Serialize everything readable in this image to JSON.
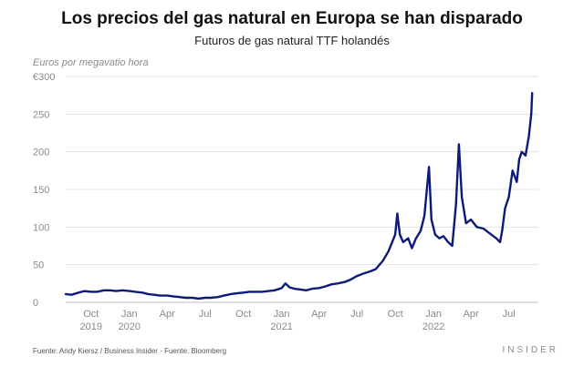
{
  "chart_data": {
    "type": "line",
    "title": "Los precios del gas natural en Europa se han disparado",
    "subtitle": "Futuros de gas natural TTF holandés",
    "ylabel": "Euros por megavatio hora",
    "source": "Fuente: Andy Kiersz / Business Insider · Fuente: Bloomberg",
    "brand": "INSIDER",
    "ylim": [
      0,
      300
    ],
    "xlim": [
      "2019-08-01",
      "2022-09-10"
    ],
    "grid": "horizontal",
    "y_ticks": [
      {
        "value": 0,
        "label": "0"
      },
      {
        "value": 50,
        "label": "50"
      },
      {
        "value": 100,
        "label": "100"
      },
      {
        "value": 150,
        "label": "150"
      },
      {
        "value": 200,
        "label": "200"
      },
      {
        "value": 250,
        "label": "250"
      },
      {
        "value": 300,
        "label": "€300"
      }
    ],
    "x_ticks": [
      {
        "date": "2019-10-01",
        "label": "Oct",
        "year": "2019"
      },
      {
        "date": "2020-01-01",
        "label": "Jan",
        "year": "2020"
      },
      {
        "date": "2020-04-01",
        "label": "Apr",
        "year": ""
      },
      {
        "date": "2020-07-01",
        "label": "Jul",
        "year": ""
      },
      {
        "date": "2020-10-01",
        "label": "Oct",
        "year": ""
      },
      {
        "date": "2021-01-01",
        "label": "Jan",
        "year": "2021"
      },
      {
        "date": "2021-04-01",
        "label": "Apr",
        "year": ""
      },
      {
        "date": "2021-07-01",
        "label": "Jul",
        "year": ""
      },
      {
        "date": "2021-10-01",
        "label": "Oct",
        "year": ""
      },
      {
        "date": "2022-01-01",
        "label": "Jan",
        "year": "2022"
      },
      {
        "date": "2022-04-01",
        "label": "Apr",
        "year": ""
      },
      {
        "date": "2022-07-01",
        "label": "Jul",
        "year": ""
      }
    ],
    "series": [
      {
        "color": "#0d1a7a",
        "points": [
          [
            "2019-08-01",
            11
          ],
          [
            "2019-08-15",
            10
          ],
          [
            "2019-09-01",
            13
          ],
          [
            "2019-09-15",
            15
          ],
          [
            "2019-10-01",
            14
          ],
          [
            "2019-10-15",
            14
          ],
          [
            "2019-11-01",
            16
          ],
          [
            "2019-11-15",
            16
          ],
          [
            "2019-12-01",
            15
          ],
          [
            "2019-12-15",
            16
          ],
          [
            "2020-01-01",
            15
          ],
          [
            "2020-01-15",
            14
          ],
          [
            "2020-02-01",
            13
          ],
          [
            "2020-02-15",
            11
          ],
          [
            "2020-03-01",
            10
          ],
          [
            "2020-03-15",
            9
          ],
          [
            "2020-04-01",
            9
          ],
          [
            "2020-04-15",
            8
          ],
          [
            "2020-05-01",
            7
          ],
          [
            "2020-05-15",
            6
          ],
          [
            "2020-06-01",
            6
          ],
          [
            "2020-06-15",
            5
          ],
          [
            "2020-07-01",
            6
          ],
          [
            "2020-07-15",
            6
          ],
          [
            "2020-08-01",
            7
          ],
          [
            "2020-08-15",
            9
          ],
          [
            "2020-09-01",
            11
          ],
          [
            "2020-09-15",
            12
          ],
          [
            "2020-10-01",
            13
          ],
          [
            "2020-10-15",
            14
          ],
          [
            "2020-11-01",
            14
          ],
          [
            "2020-11-15",
            14
          ],
          [
            "2020-12-01",
            15
          ],
          [
            "2020-12-15",
            16
          ],
          [
            "2021-01-01",
            19
          ],
          [
            "2021-01-10",
            25
          ],
          [
            "2021-01-20",
            20
          ],
          [
            "2021-02-01",
            18
          ],
          [
            "2021-02-15",
            17
          ],
          [
            "2021-03-01",
            16
          ],
          [
            "2021-03-15",
            18
          ],
          [
            "2021-04-01",
            19
          ],
          [
            "2021-04-15",
            21
          ],
          [
            "2021-05-01",
            24
          ],
          [
            "2021-05-15",
            25
          ],
          [
            "2021-06-01",
            27
          ],
          [
            "2021-06-15",
            30
          ],
          [
            "2021-07-01",
            35
          ],
          [
            "2021-07-15",
            38
          ],
          [
            "2021-08-01",
            41
          ],
          [
            "2021-08-15",
            44
          ],
          [
            "2021-09-01",
            55
          ],
          [
            "2021-09-15",
            68
          ],
          [
            "2021-10-01",
            90
          ],
          [
            "2021-10-06",
            118
          ],
          [
            "2021-10-12",
            90
          ],
          [
            "2021-10-20",
            80
          ],
          [
            "2021-11-01",
            85
          ],
          [
            "2021-11-10",
            72
          ],
          [
            "2021-11-20",
            85
          ],
          [
            "2021-12-01",
            95
          ],
          [
            "2021-12-10",
            115
          ],
          [
            "2021-12-21",
            180
          ],
          [
            "2021-12-27",
            110
          ],
          [
            "2022-01-05",
            90
          ],
          [
            "2022-01-15",
            85
          ],
          [
            "2022-01-25",
            88
          ],
          [
            "2022-02-05",
            80
          ],
          [
            "2022-02-15",
            75
          ],
          [
            "2022-02-24",
            130
          ],
          [
            "2022-03-03",
            210
          ],
          [
            "2022-03-10",
            140
          ],
          [
            "2022-03-20",
            105
          ],
          [
            "2022-04-01",
            110
          ],
          [
            "2022-04-15",
            100
          ],
          [
            "2022-05-01",
            98
          ],
          [
            "2022-05-15",
            92
          ],
          [
            "2022-06-01",
            85
          ],
          [
            "2022-06-10",
            80
          ],
          [
            "2022-06-15",
            95
          ],
          [
            "2022-06-22",
            125
          ],
          [
            "2022-07-01",
            140
          ],
          [
            "2022-07-10",
            175
          ],
          [
            "2022-07-20",
            160
          ],
          [
            "2022-07-26",
            190
          ],
          [
            "2022-08-01",
            200
          ],
          [
            "2022-08-10",
            195
          ],
          [
            "2022-08-18",
            220
          ],
          [
            "2022-08-24",
            250
          ],
          [
            "2022-08-26",
            278
          ]
        ]
      }
    ]
  }
}
